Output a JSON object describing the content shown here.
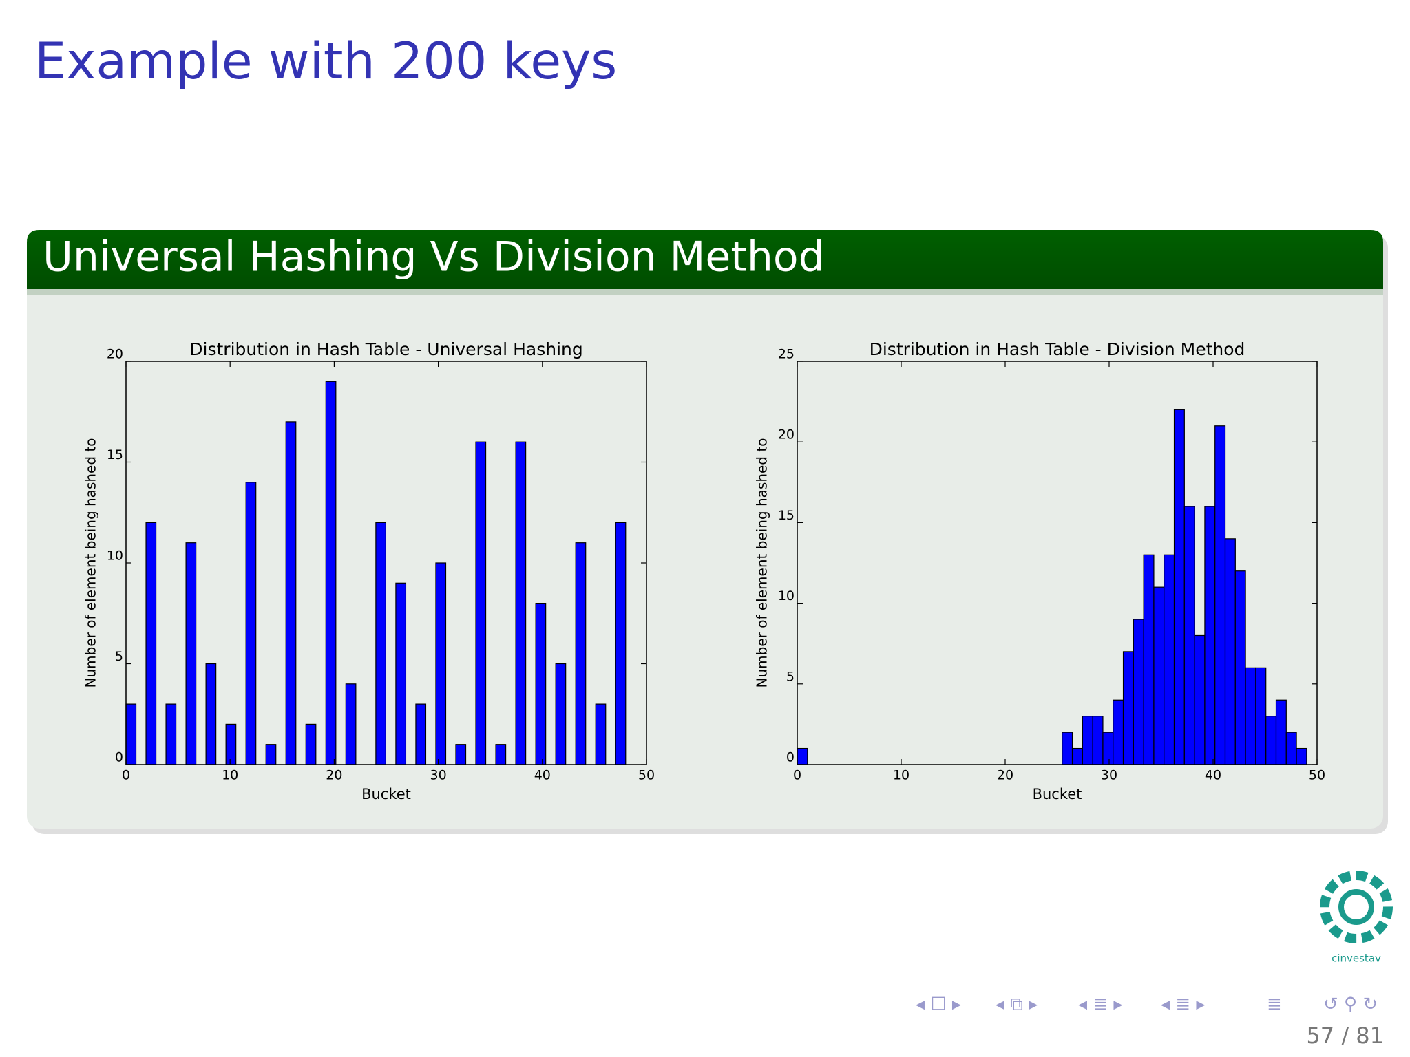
{
  "slide": {
    "title": "Example with 200 keys",
    "block_title": "Universal Hashing Vs Division Method",
    "page": "57 / 81",
    "logo_text": "cinvestav"
  },
  "chart_data": [
    {
      "type": "histogram",
      "title": "Distribution in Hash Table - Universal Hashing",
      "xlabel": "Bucket",
      "ylabel": "Number of element being hashed to",
      "color": "#0000ff",
      "bins": [
        0,
        0.96,
        1.92,
        2.88,
        3.84,
        4.8,
        5.76,
        6.72,
        7.68,
        8.64,
        9.6,
        10.56,
        11.52,
        12.48,
        13.44,
        14.4,
        15.36,
        16.32,
        17.28,
        18.24,
        19.2,
        20.16,
        21.12,
        22.08,
        23.04,
        24,
        24.96,
        25.92,
        26.88,
        27.84,
        28.8,
        29.76,
        30.72,
        31.68,
        32.64,
        33.6,
        34.56,
        35.52,
        36.48,
        37.44,
        38.4,
        39.36,
        40.32,
        41.28,
        42.24,
        43.2,
        44.16,
        45.12,
        46.08,
        47.04,
        48
      ],
      "values": [
        3,
        0,
        12,
        0,
        3,
        0,
        11,
        0,
        5,
        0,
        2,
        0,
        14,
        0,
        1,
        0,
        17,
        0,
        2,
        0,
        19,
        0,
        4,
        0,
        0,
        12,
        0,
        9,
        0,
        3,
        0,
        10,
        0,
        1,
        0,
        16,
        0,
        1,
        0,
        16,
        0,
        8,
        0,
        5,
        0,
        11,
        0,
        3,
        0,
        12
      ],
      "xlim": [
        0,
        50
      ],
      "ylim": [
        0,
        20
      ],
      "xticks": [
        0,
        10,
        20,
        30,
        40,
        50
      ],
      "yticks": [
        0,
        5,
        10,
        15,
        20
      ]
    },
    {
      "type": "histogram",
      "title": "Distribution in Hash Table - Division Method",
      "xlabel": "Bucket",
      "ylabel": "Number of element being hashed to",
      "color": "#0000ff",
      "bins": [
        0,
        0.98,
        1.96,
        2.94,
        3.92,
        4.9,
        5.88,
        6.86,
        7.84,
        8.82,
        9.8,
        10.78,
        11.76,
        12.74,
        13.72,
        14.7,
        15.68,
        16.66,
        17.64,
        18.62,
        19.6,
        20.58,
        21.56,
        22.54,
        23.52,
        24.5,
        25.48,
        26.46,
        27.44,
        28.42,
        29.4,
        30.38,
        31.36,
        32.34,
        33.32,
        34.3,
        35.28,
        36.26,
        37.24,
        38.22,
        39.2,
        40.18,
        41.16,
        42.14,
        43.12,
        44.1,
        45.08,
        46.06,
        47.04,
        48.02,
        49
      ],
      "values": [
        1,
        0,
        0,
        0,
        0,
        0,
        0,
        0,
        0,
        0,
        0,
        0,
        0,
        0,
        0,
        0,
        0,
        0,
        0,
        0,
        0,
        0,
        0,
        0,
        0,
        0,
        2,
        1,
        3,
        3,
        2,
        4,
        7,
        9,
        13,
        11,
        13,
        22,
        16,
        8,
        16,
        21,
        14,
        12,
        6,
        6,
        3,
        4,
        2,
        1
      ],
      "xlim": [
        0,
        50
      ],
      "ylim": [
        0,
        25
      ],
      "xticks": [
        0,
        10,
        20,
        30,
        40,
        50
      ],
      "yticks": [
        0,
        5,
        10,
        15,
        20,
        25
      ]
    }
  ]
}
